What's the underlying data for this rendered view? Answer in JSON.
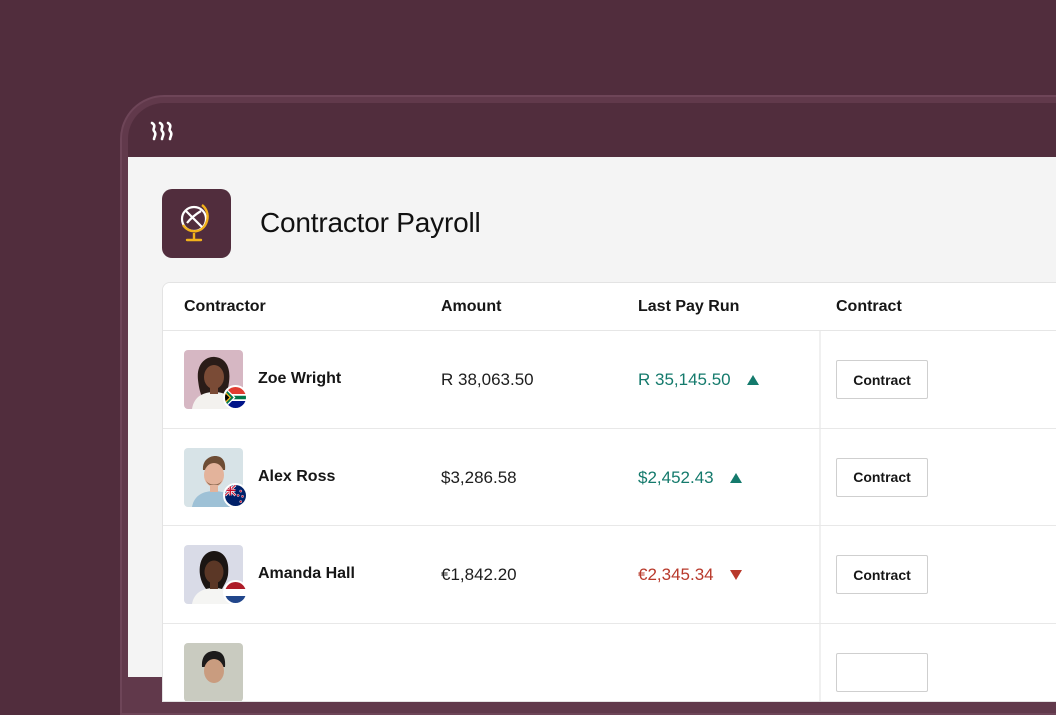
{
  "page": {
    "title": "Contractor Payroll",
    "icon": "globe-icon"
  },
  "brand": {
    "logo": "rippling-logo",
    "accent": "#512d3d",
    "icon_gold": "#f2b21b"
  },
  "table": {
    "headers": {
      "contractor": "Contractor",
      "amount": "Amount",
      "last_pay_run": "Last Pay Run",
      "contract": "Contract"
    },
    "rows": [
      {
        "name": "Zoe Wright",
        "amount": "R 38,063.50",
        "last_pay_run": "R 35,145.50",
        "trend": "up",
        "contract_label": "Contract",
        "flag": "south-africa-flag"
      },
      {
        "name": "Alex Ross",
        "amount": "$3,286.58",
        "last_pay_run": "$2,452.43",
        "trend": "up",
        "contract_label": "Contract",
        "flag": "new-zealand-flag"
      },
      {
        "name": "Amanda Hall",
        "amount": "€1,842.20",
        "last_pay_run": "€2,345.34",
        "trend": "down",
        "contract_label": "Contract",
        "flag": "netherlands-flag"
      }
    ]
  },
  "colors": {
    "up": "#147a6c",
    "down": "#b8392b"
  }
}
